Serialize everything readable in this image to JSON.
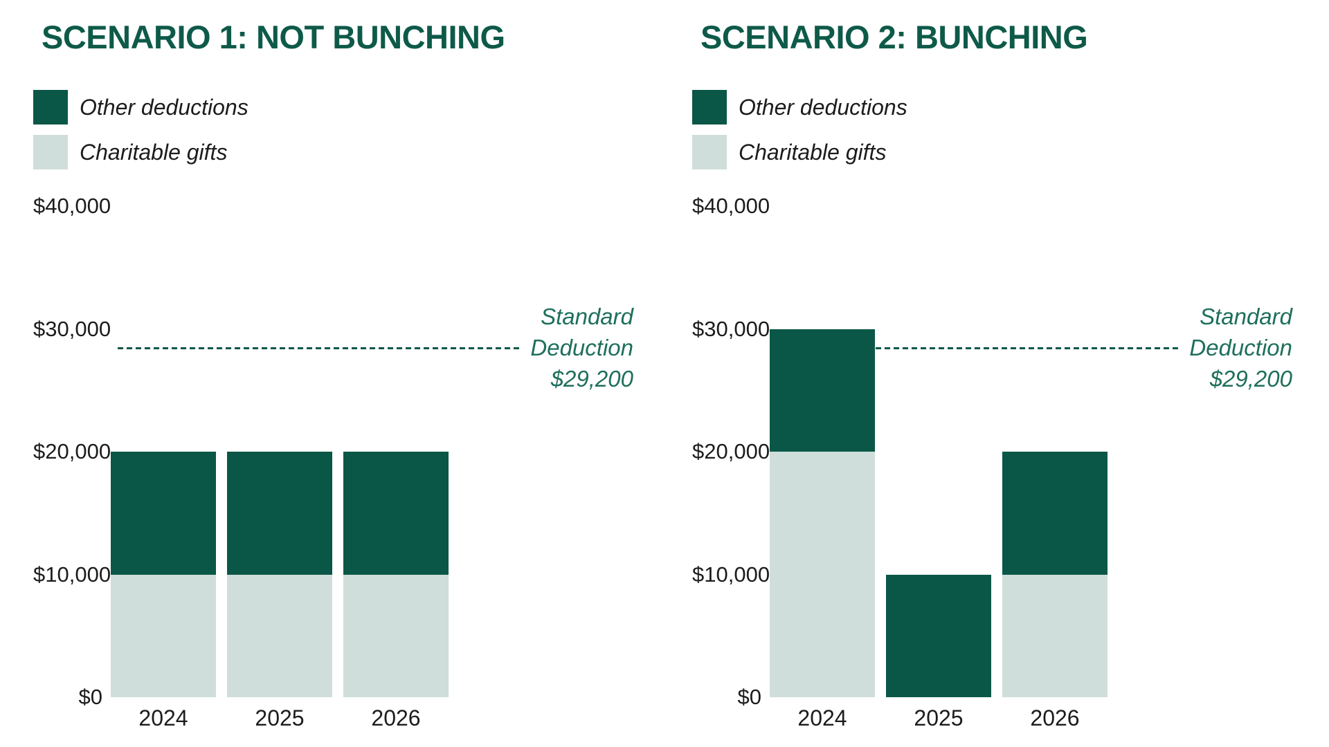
{
  "colors": {
    "dark_green": "#0A5747",
    "light_green": "#CFDEDA",
    "title_green": "#0E5A49",
    "reference_green": "#1E6F5B",
    "text": "#1C1C1C",
    "background": "#FFFFFF"
  },
  "charts": [
    {
      "title": "SCENARIO 1: NOT BUNCHING",
      "legend": [
        {
          "label": "Other deductions",
          "color_key": "dark_green"
        },
        {
          "label": "Charitable gifts",
          "color_key": "light_green"
        }
      ],
      "chart_data": {
        "type": "bar",
        "stacked": true,
        "categories": [
          "2024",
          "2025",
          "2026"
        ],
        "series": [
          {
            "name": "Charitable gifts",
            "color_key": "light_green",
            "values": [
              10000,
              10000,
              10000
            ]
          },
          {
            "name": "Other deductions",
            "color_key": "dark_green",
            "values": [
              10000,
              10000,
              10000
            ]
          }
        ],
        "ylim": [
          0,
          40000
        ],
        "yticks": [
          {
            "value": 40000,
            "label": "$40,000"
          },
          {
            "value": 30000,
            "label": "$30,000"
          },
          {
            "value": 20000,
            "label": "$20,000"
          },
          {
            "value": 10000,
            "label": "$10,000"
          },
          {
            "value": 0,
            "label": "$0"
          }
        ],
        "grid": false,
        "legend_position": "top-left",
        "reference_line": {
          "value": 29200,
          "position_value": 28400,
          "style": "dashed",
          "label_lines": [
            "Standard",
            "Deduction",
            "$29,200"
          ]
        }
      }
    },
    {
      "title": "SCENARIO 2: BUNCHING",
      "legend": [
        {
          "label": "Other deductions",
          "color_key": "dark_green"
        },
        {
          "label": "Charitable gifts",
          "color_key": "light_green"
        }
      ],
      "chart_data": {
        "type": "bar",
        "stacked": true,
        "categories": [
          "2024",
          "2025",
          "2026"
        ],
        "series": [
          {
            "name": "Charitable gifts",
            "color_key": "light_green",
            "values": [
              20000,
              0,
              10000
            ]
          },
          {
            "name": "Other deductions",
            "color_key": "dark_green",
            "values": [
              10000,
              10000,
              10000
            ]
          }
        ],
        "ylim": [
          0,
          40000
        ],
        "yticks": [
          {
            "value": 40000,
            "label": "$40,000"
          },
          {
            "value": 30000,
            "label": "$30,000"
          },
          {
            "value": 20000,
            "label": "$20,000"
          },
          {
            "value": 10000,
            "label": "$10,000"
          },
          {
            "value": 0,
            "label": "$0"
          }
        ],
        "grid": false,
        "legend_position": "top-left",
        "reference_line": {
          "value": 29200,
          "position_value": 28400,
          "style": "dashed",
          "label_lines": [
            "Standard",
            "Deduction",
            "$29,200"
          ]
        }
      }
    }
  ]
}
